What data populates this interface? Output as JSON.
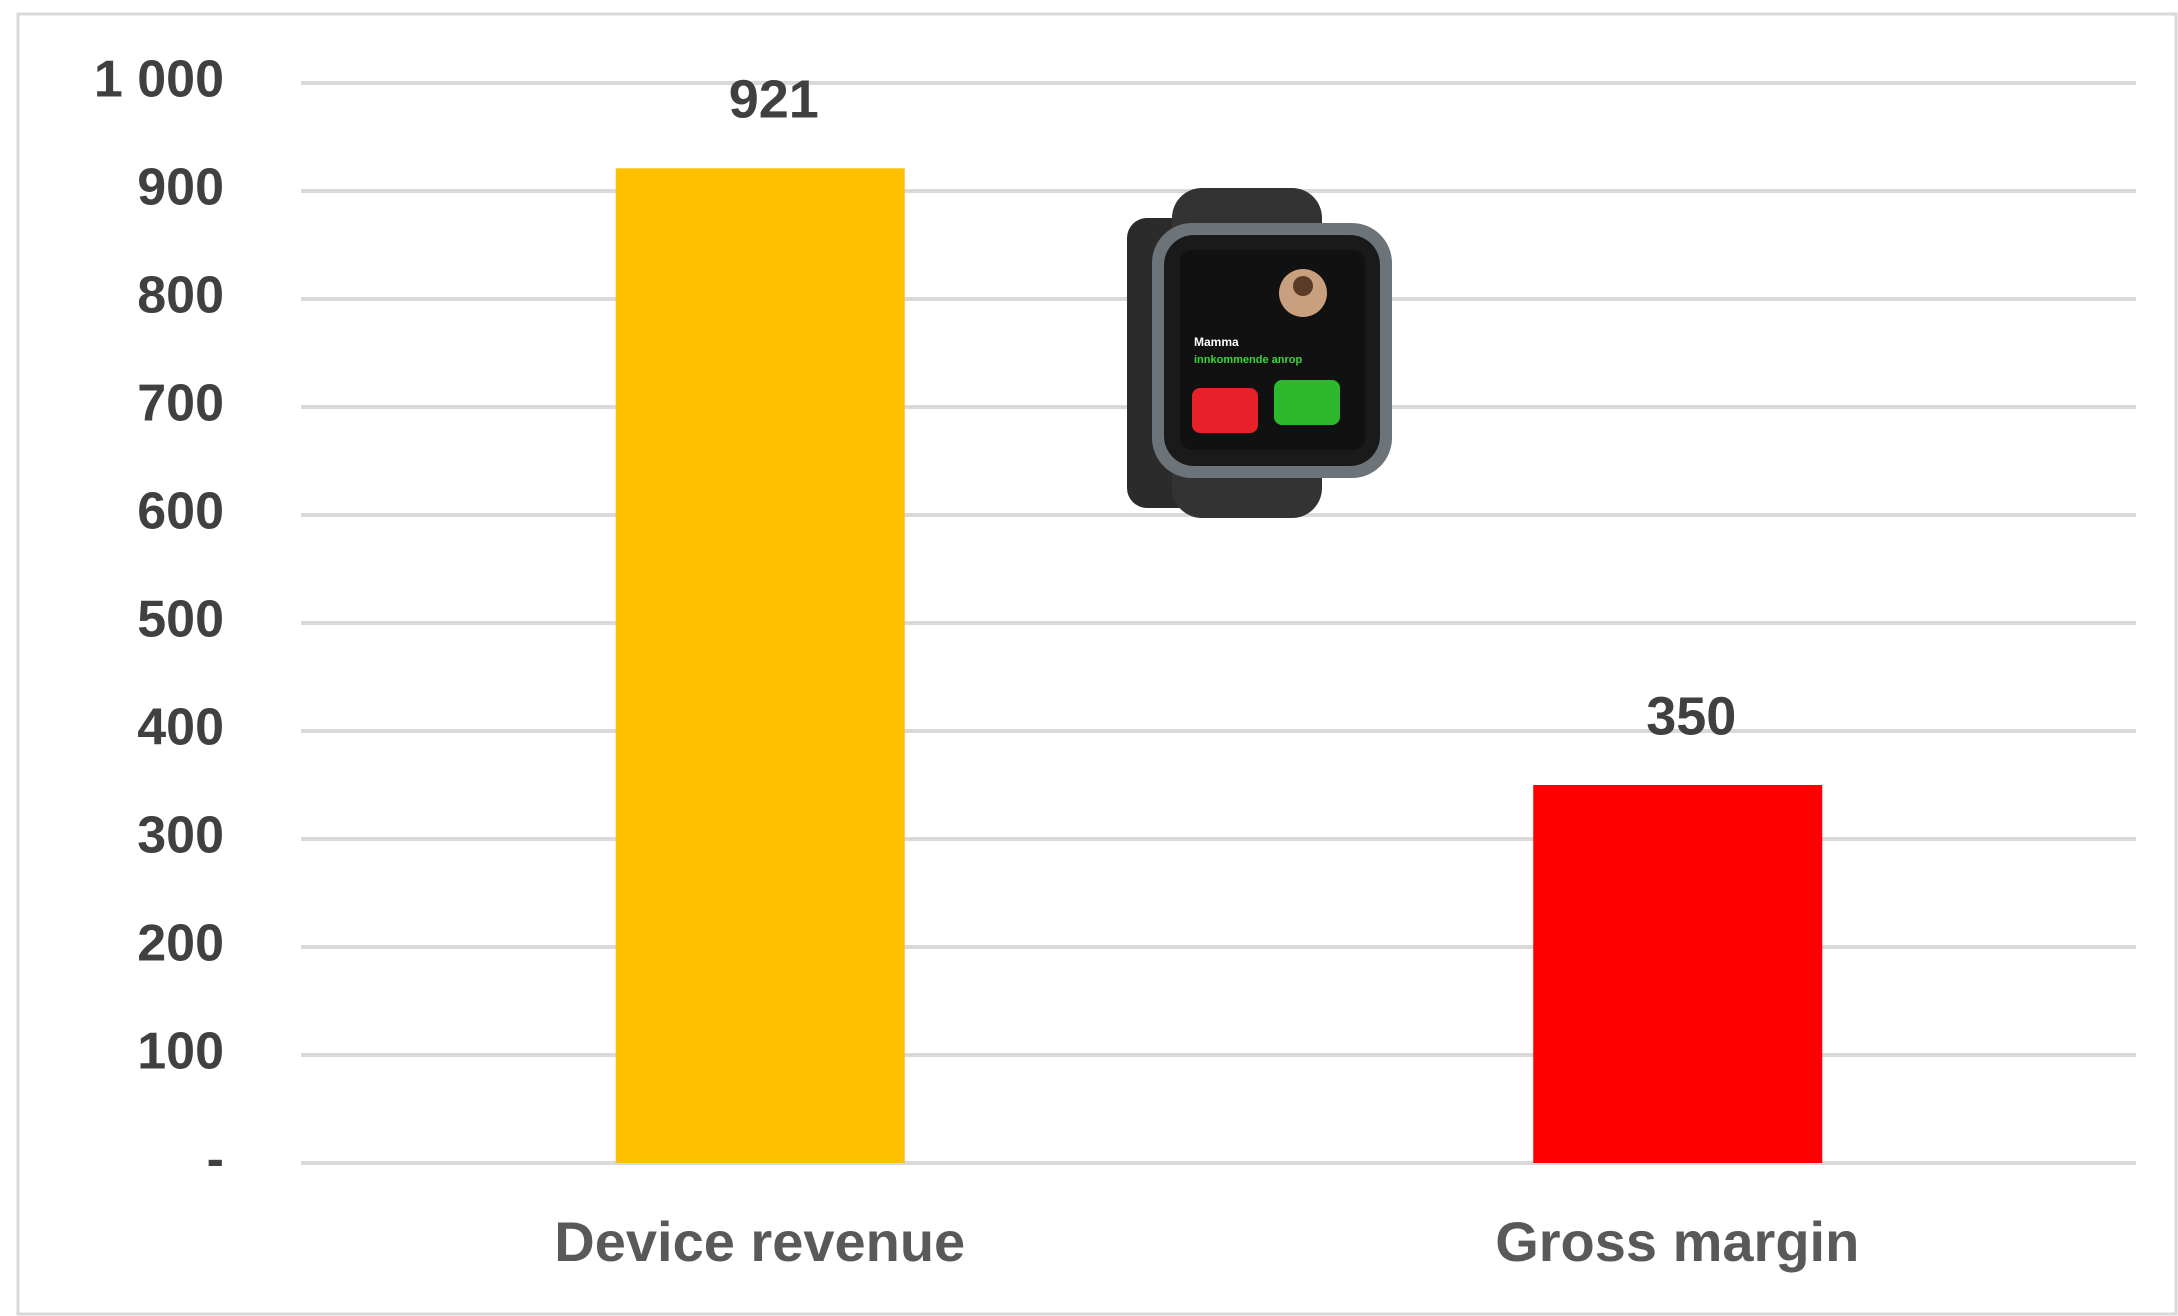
{
  "chart_data": {
    "type": "bar",
    "categories": [
      "Device revenue",
      "Gross margin"
    ],
    "values": [
      921,
      350
    ],
    "colors": [
      "#FFC000",
      "#FF0000"
    ],
    "ylim": [
      0,
      1000
    ],
    "yticks": [
      {
        "value": 0,
        "label": "-"
      },
      100,
      200,
      300,
      400,
      500,
      600,
      700,
      800,
      900,
      {
        "value": 1000,
        "label": "1 000"
      }
    ],
    "grid": true
  },
  "watch": {
    "caller": "Mamma",
    "status": "innkommende anrop"
  }
}
